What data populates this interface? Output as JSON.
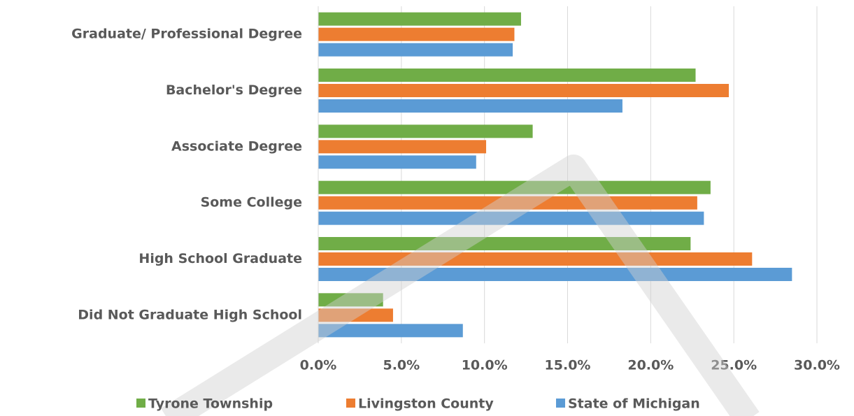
{
  "chart_data": {
    "type": "bar",
    "orientation": "horizontal",
    "categories": [
      "Graduate/ Professional Degree",
      "Bachelor's Degree",
      "Associate Degree",
      "Some College",
      "High School Graduate",
      "Did Not Graduate High School"
    ],
    "series": [
      {
        "name": "Tyrone Township",
        "color": "#70ad47",
        "values": [
          12.2,
          22.7,
          12.9,
          23.6,
          22.4,
          3.9
        ]
      },
      {
        "name": "Livingston County",
        "color": "#ed7d31",
        "values": [
          11.8,
          24.7,
          10.1,
          22.8,
          26.1,
          4.5
        ]
      },
      {
        "name": "State of Michigan",
        "color": "#5b9bd5",
        "values": [
          11.7,
          18.3,
          9.5,
          23.2,
          28.5,
          8.7
        ]
      }
    ],
    "xlim": [
      0,
      30
    ],
    "xticks": [
      {
        "value": 0,
        "label": "0.0%"
      },
      {
        "value": 5,
        "label": "5.0%"
      },
      {
        "value": 10,
        "label": "10.0%"
      },
      {
        "value": 15,
        "label": "15.0%"
      },
      {
        "value": 20,
        "label": "20.0%"
      },
      {
        "value": 25,
        "label": "25.0%"
      },
      {
        "value": 30,
        "label": "30.0%"
      }
    ],
    "grid": true,
    "legend": "bottom"
  }
}
